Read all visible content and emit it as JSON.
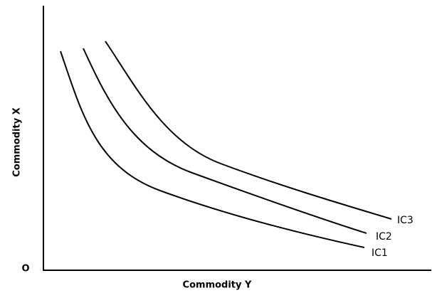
{
  "axes": {
    "y_label": "Commodity X",
    "x_label": "Commodity Y",
    "origin": "O"
  },
  "curves": [
    {
      "label": "IC1"
    },
    {
      "label": "IC2"
    },
    {
      "label": "IC3"
    }
  ]
}
